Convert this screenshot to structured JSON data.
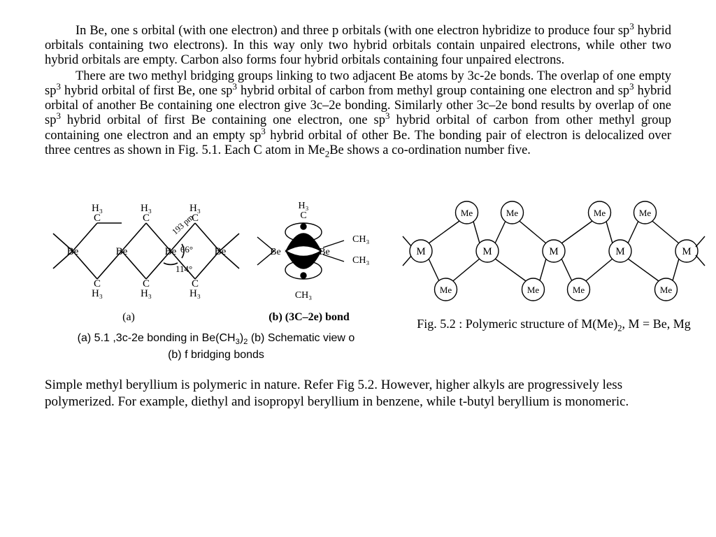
{
  "paragraphs": {
    "p1_html": "In Be, one s orbital (with one electron) and three p orbitals (with one electron hybridize to produce four sp<sup>3</sup> hybrid orbitals containing two electrons). In this way only two hybrid orbitals contain unpaired electrons, while other two hybrid orbitals are empty. Carbon also forms four hybrid orbitals containing four unpaired electrons.",
    "p2_html": "There are two methyl bridging groups linking to two adjacent Be atoms by 3c-2e bonds. The overlap of one empty sp<sup>3</sup> hybrid orbital of first Be, one sp<sup>3</sup> hybrid orbital of carbon from methyl group containing one electron and sp<sup>3</sup> hybrid orbital of another Be containing one electron give 3c–2e bonding. Similarly other 3c–2e bond results by overlap of one sp<sup>3</sup> hybrid orbital of first Be containing one electron, one sp<sup>3</sup> hybrid orbital of carbon from other methyl group containing one electron and an empty sp<sup>3</sup> hybrid orbital of other Be. The bonding pair of electron is delocalized over three centres as shown in Fig. 5.1. Each C atom in Me<sub>2</sub>Be shows a co-ordination number five.",
    "p3": "Simple methyl beryllium is polymeric in nature. Refer Fig 5.2. However, higher alkyls are progressively less polymerized. For example, diethyl and isopropyl beryllium in benzene, while t-butyl beryllium is monomeric."
  },
  "fig51": {
    "chain": {
      "be_label": "Be",
      "top_labels": [
        "H₃",
        "H₃",
        "H₃",
        "H₃"
      ],
      "top_sub": "C",
      "bot_labels": [
        "C",
        "C",
        "C"
      ],
      "bot_sub": "H₃",
      "bond_len": "193 pm",
      "angle_inner": "66°",
      "angle_outer": "114°",
      "part_label": "(a)"
    },
    "orbital": {
      "be": "Be",
      "c_top_html": "H<sub>3</sub><br>C",
      "ch3_top": "CH₃",
      "ch3_bot": "CH₃",
      "ch3_bottom": "CH₃",
      "part_label": "(b) (3C–2e) bond"
    },
    "caption_a_html": "(a) 5.1 ,3c-2e bonding in Be(CH<sub>3</sub>)<sub>2</sub> (b) Schematic view o",
    "caption_b": "(b) f bridging bonds"
  },
  "fig52": {
    "M": "M",
    "Me": "Me",
    "caption_html": "Fig. 5.2 : Polymeric structure of M(Me)<sub>2</sub>, M = Be, Mg"
  },
  "style": {
    "stroke": "#000",
    "stroke_w": 1.6,
    "fill": "#fff",
    "font_atom": 16,
    "font_small": 13,
    "circle_r": 16
  }
}
